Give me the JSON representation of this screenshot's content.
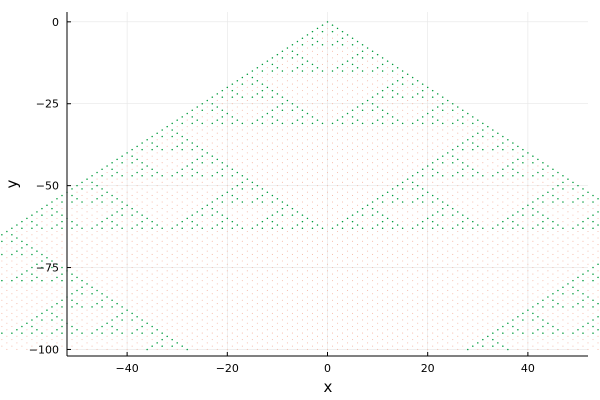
{
  "chart_data": {
    "type": "scatter",
    "title": "",
    "xlabel": "x",
    "ylabel": "y",
    "xlim": [
      -52,
      52
    ],
    "ylim": [
      -102,
      3
    ],
    "x_ticks": [
      -40,
      -20,
      0,
      20,
      40
    ],
    "x_tick_labels": [
      "−40",
      "−20",
      "0",
      "20",
      "40"
    ],
    "y_ticks": [
      0,
      -25,
      -50,
      -75,
      -100
    ],
    "y_tick_labels": [
      "0",
      "−25",
      "−50",
      "−75",
      "−100"
    ],
    "grid": true,
    "legend": false,
    "pattern": "Pascal triangle rows 0 to 100 (row r at y = -r, entries at x = -r, -r+2, ..., r), colored by binomial coefficient parity (Sierpinski triangle)",
    "series_colors": {
      "odd": "#009a3a",
      "even": "#f4b8a6"
    }
  }
}
